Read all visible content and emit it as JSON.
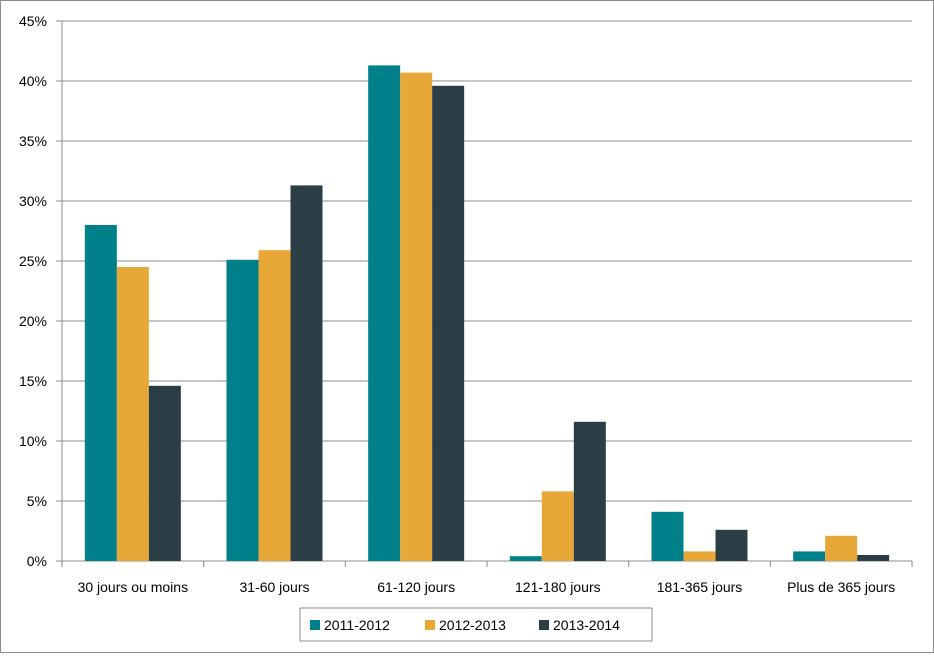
{
  "chart_data": {
    "type": "bar",
    "categories": [
      "30 jours ou moins",
      "31-60 jours",
      "61-120 jours",
      "121-180 jours",
      "181-365 jours",
      "Plus de 365 jours"
    ],
    "series": [
      {
        "name": "2011-2012",
        "color": "#00808a",
        "values": [
          28.0,
          25.1,
          41.3,
          0.4,
          4.1,
          0.8
        ]
      },
      {
        "name": "2012-2013",
        "color": "#e8a838",
        "values": [
          24.5,
          25.9,
          40.7,
          5.8,
          0.8,
          2.1
        ]
      },
      {
        "name": "2013-2014",
        "color": "#2c3e45",
        "values": [
          14.6,
          31.3,
          39.6,
          11.6,
          2.6,
          0.5
        ]
      }
    ],
    "ylim": [
      0,
      45
    ],
    "yticks": [
      "0%",
      "5%",
      "10%",
      "15%",
      "20%",
      "25%",
      "30%",
      "35%",
      "40%",
      "45%"
    ],
    "ytick_values": [
      0,
      5,
      10,
      15,
      20,
      25,
      30,
      35,
      40,
      45
    ],
    "grid": true,
    "legend_position": "bottom"
  }
}
